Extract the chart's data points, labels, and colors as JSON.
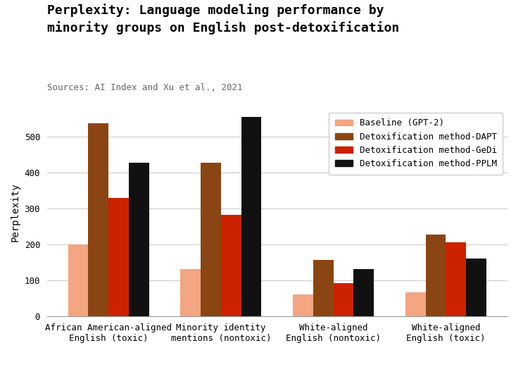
{
  "title": "Perplexity: Language modeling performance by\nminority groups on English post-detoxification",
  "subtitle": "Sources: AI Index and Xu et al., 2021",
  "ylabel": "Perplexity",
  "categories": [
    "African American-aligned\nEnglish (toxic)",
    "Minority identity\nmentions (nontoxic)",
    "White-aligned\nEnglish (nontoxic)",
    "White-aligned\nEnglish (toxic)"
  ],
  "series": [
    {
      "label": "Baseline (GPT-2)",
      "color": "#F4A582",
      "values": [
        200,
        132,
        62,
        67
      ]
    },
    {
      "label": "Detoxification method-DAPT",
      "color": "#8B4513",
      "values": [
        537,
        428,
        158,
        228
      ]
    },
    {
      "label": "Detoxification method-GeDi",
      "color": "#CC2200",
      "values": [
        330,
        283,
        93,
        207
      ]
    },
    {
      "label": "Detoxification method-PPLM",
      "color": "#111111",
      "values": [
        428,
        555,
        132,
        162
      ]
    }
  ],
  "ylim": [
    0,
    580
  ],
  "yticks": [
    0,
    100,
    200,
    300,
    400,
    500
  ],
  "background_color": "#ffffff",
  "title_fontsize": 13,
  "subtitle_fontsize": 9,
  "bar_width": 0.18,
  "legend_fontsize": 9,
  "tick_fontsize": 9,
  "ylabel_fontsize": 10
}
